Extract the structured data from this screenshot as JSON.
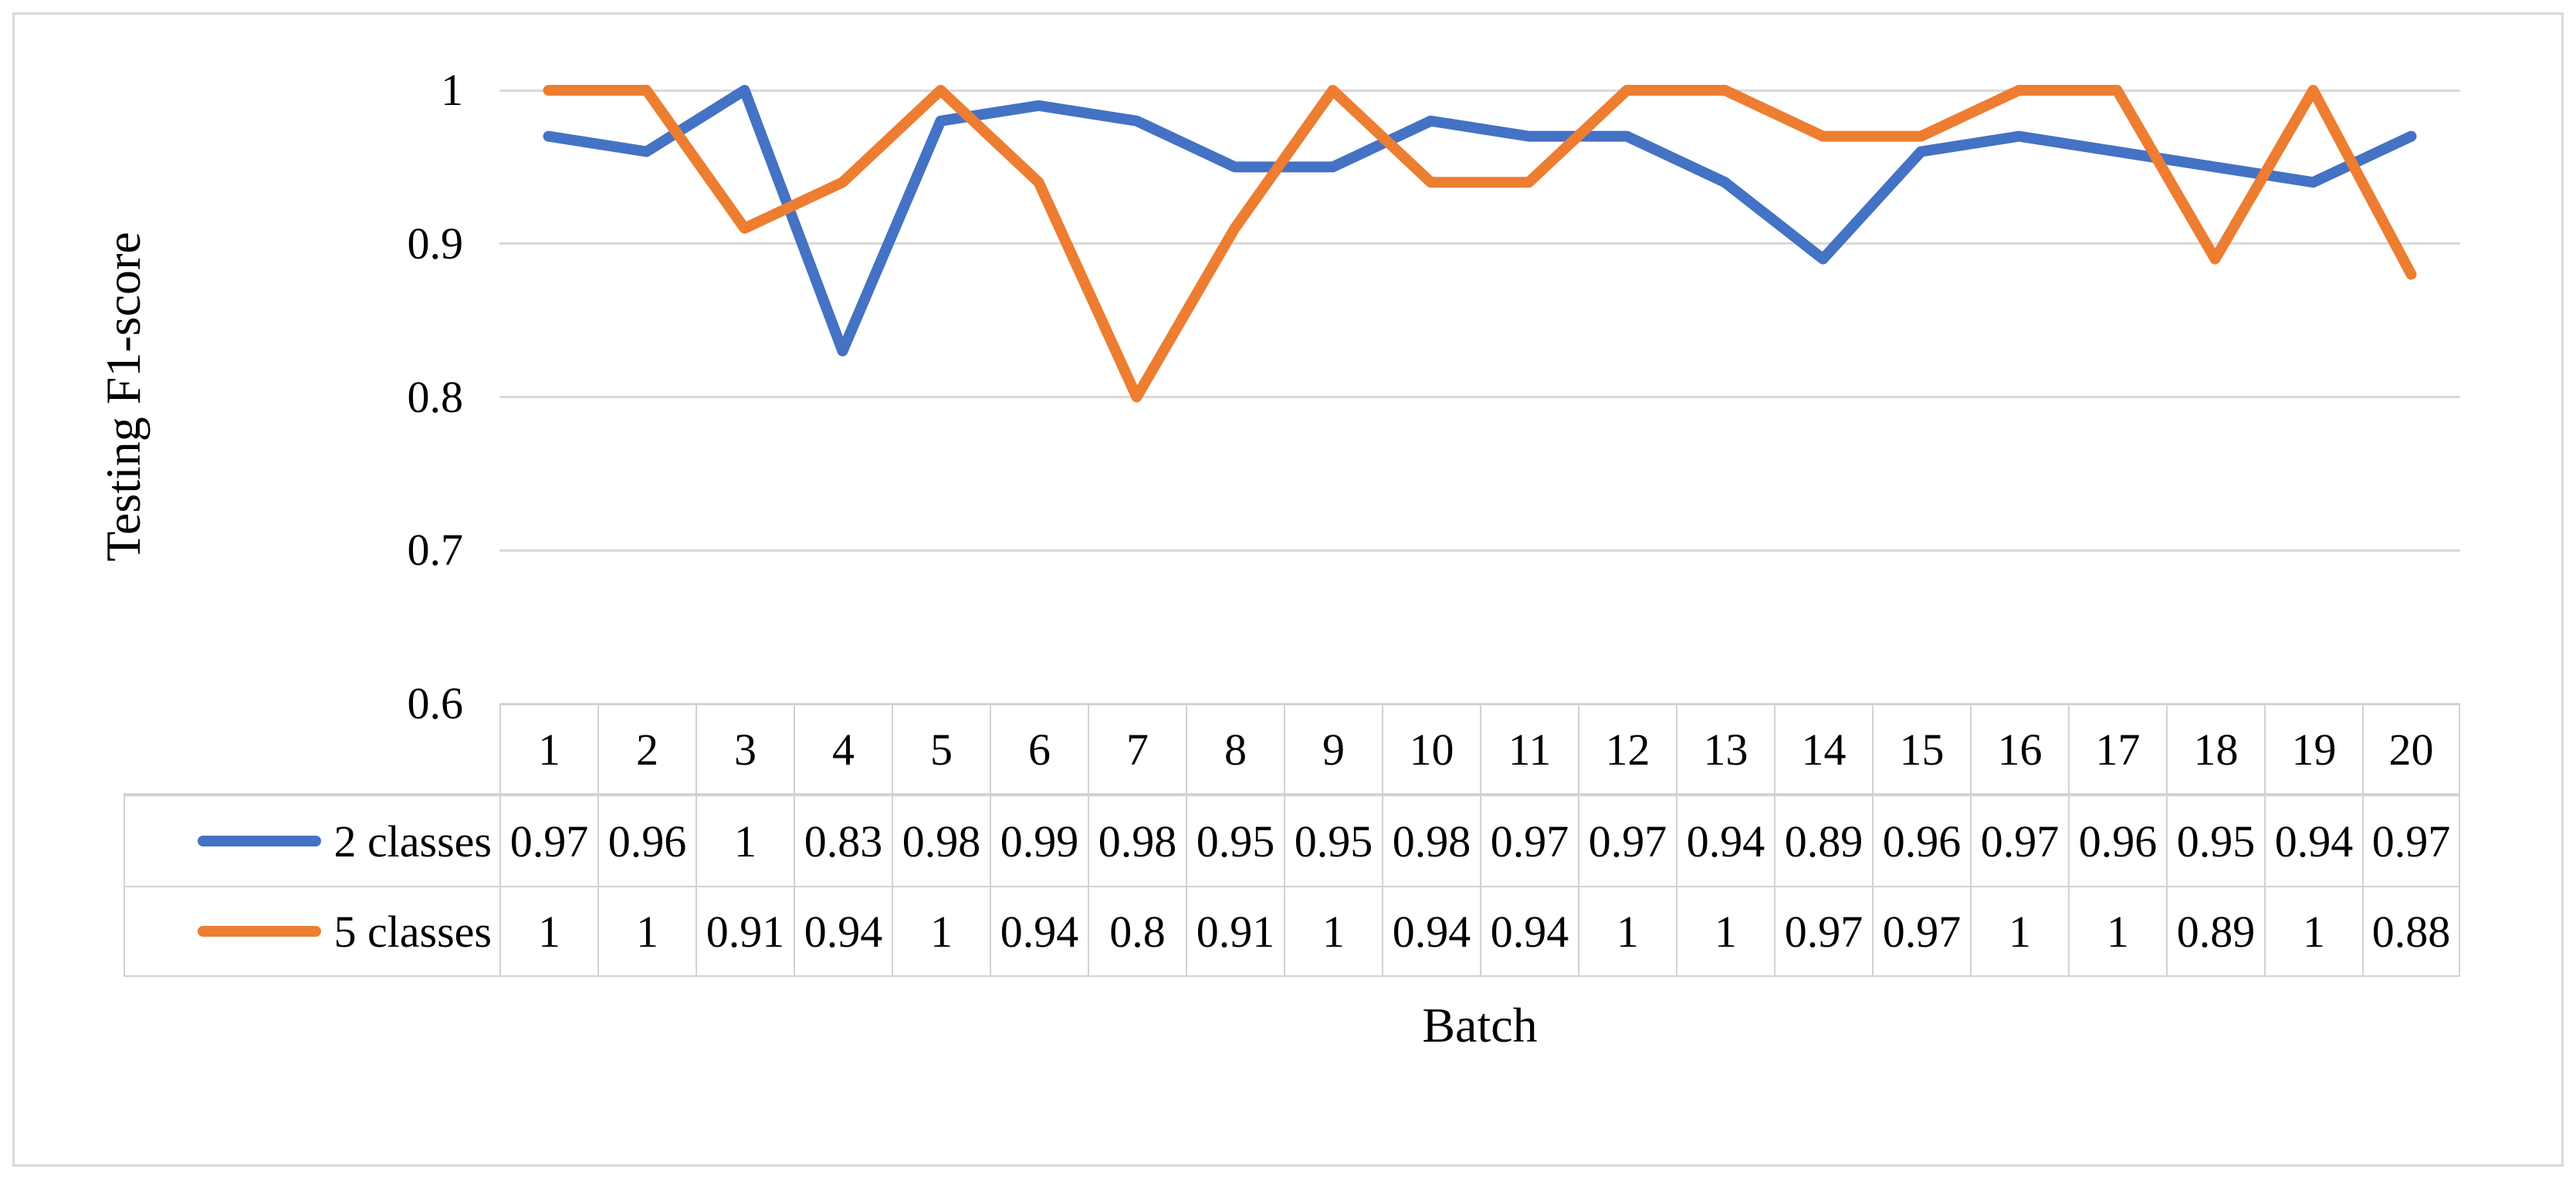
{
  "figure": {
    "y_axis_title": "Testing F1-score",
    "x_axis_title": "Batch",
    "y_ticks": [
      "1",
      "0.9",
      "0.8",
      "0.7",
      "0.6"
    ],
    "gridline_color": "#D9D9D9",
    "table_border_color": "#D2D2D2",
    "frame_color": "#DADADA"
  },
  "chart_data": {
    "type": "line",
    "title": "",
    "xlabel": "Batch",
    "ylabel": "Testing F1-score",
    "ylim": [
      0.6,
      1
    ],
    "y_tick_step": 0.1,
    "grid": "horizontal",
    "legend_position": "data-table-left",
    "categories": [
      "1",
      "2",
      "3",
      "4",
      "5",
      "6",
      "7",
      "8",
      "9",
      "10",
      "11",
      "12",
      "13",
      "14",
      "15",
      "16",
      "17",
      "18",
      "19",
      "20"
    ],
    "series": [
      {
        "name": "2 classes",
        "color": "#4472C4",
        "values": [
          0.97,
          0.96,
          1,
          0.83,
          0.98,
          0.99,
          0.98,
          0.95,
          0.95,
          0.98,
          0.97,
          0.97,
          0.94,
          0.89,
          0.96,
          0.97,
          0.96,
          0.95,
          0.94,
          0.97
        ]
      },
      {
        "name": "5 classes",
        "color": "#ED7D31",
        "values": [
          1,
          1,
          0.91,
          0.94,
          1,
          0.94,
          0.8,
          0.91,
          1,
          0.94,
          0.94,
          1,
          1,
          0.97,
          0.97,
          1,
          1,
          0.89,
          1,
          0.88
        ]
      }
    ]
  }
}
